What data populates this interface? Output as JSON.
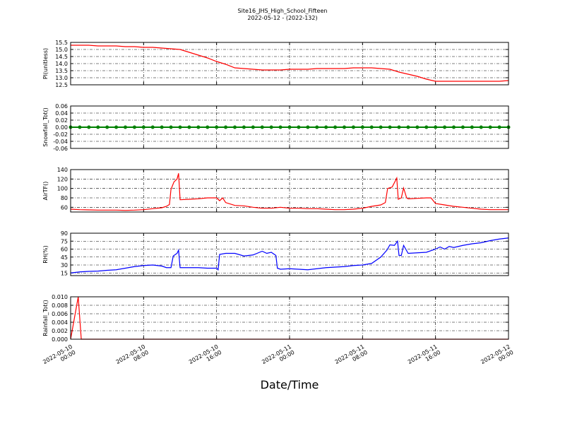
{
  "title": "Site16_JHS_High_School_Fifteen",
  "subtitle": "2022-05-12 - (2022-132)",
  "xlabel": "Date/Time",
  "chart_data": [
    {
      "type": "line",
      "ylabel": "Pl(unitless)",
      "xlim": [
        "2022-05-10 00:00",
        "2022-05-12 00:00"
      ],
      "xticks": [
        "2022-05-10 00:00",
        "2022-05-10 08:00",
        "2022-05-10 16:00",
        "2022-05-11 00:00",
        "2022-05-11 08:00",
        "2022-05-11 16:00",
        "2022-05-12 00:00"
      ],
      "ylim": [
        12.5,
        15.5
      ],
      "yticks": [
        12.5,
        {
          "value": 13,
          "label": "13.0"
        },
        13.5,
        {
          "value": 14,
          "label": "14.0"
        },
        14.5,
        {
          "value": 15,
          "label": "15.0"
        },
        15.5
      ],
      "grid": true,
      "x": [
        "2022-05-10 00:00",
        "2022-05-10 01:00",
        "2022-05-10 02:00",
        "2022-05-10 03:00",
        "2022-05-10 04:00",
        "2022-05-10 05:00",
        "2022-05-10 06:00",
        "2022-05-10 07:00",
        "2022-05-10 08:00",
        "2022-05-10 09:00",
        "2022-05-10 10:00",
        "2022-05-10 11:00",
        "2022-05-10 12:00",
        "2022-05-10 13:00",
        "2022-05-10 14:00",
        "2022-05-10 15:00",
        "2022-05-10 16:00",
        "2022-05-10 17:00",
        "2022-05-10 18:00",
        "2022-05-10 19:00",
        "2022-05-10 20:00",
        "2022-05-10 21:00",
        "2022-05-10 22:00",
        "2022-05-10 23:00",
        "2022-05-11 00:00",
        "2022-05-11 01:00",
        "2022-05-11 02:00",
        "2022-05-11 03:00",
        "2022-05-11 04:00",
        "2022-05-11 05:00",
        "2022-05-11 06:00",
        "2022-05-11 07:00",
        "2022-05-11 08:00",
        "2022-05-11 09:00",
        "2022-05-11 10:00",
        "2022-05-11 11:00",
        "2022-05-11 12:00",
        "2022-05-11 13:00",
        "2022-05-11 14:00",
        "2022-05-11 15:00",
        "2022-05-11 16:00",
        "2022-05-11 17:00",
        "2022-05-11 18:00",
        "2022-05-11 19:00",
        "2022-05-11 20:00",
        "2022-05-11 21:00",
        "2022-05-11 22:00",
        "2022-05-11 23:00",
        "2022-05-12 00:00"
      ],
      "series": [
        {
          "color": "#ff0000",
          "values": [
            15.3,
            15.3,
            15.3,
            15.25,
            15.25,
            15.25,
            15.2,
            15.2,
            15.15,
            15.15,
            15.1,
            15.05,
            15.0,
            14.8,
            14.6,
            14.4,
            14.15,
            13.95,
            13.7,
            13.65,
            13.6,
            13.55,
            13.55,
            13.55,
            13.6,
            13.6,
            13.6,
            13.65,
            13.65,
            13.65,
            13.65,
            13.7,
            13.7,
            13.7,
            13.65,
            13.6,
            13.4,
            13.25,
            13.1,
            12.9,
            12.75,
            12.75,
            12.75,
            12.75,
            12.75,
            12.75,
            12.75,
            12.75,
            12.8
          ]
        }
      ]
    },
    {
      "type": "line",
      "ylabel": "Snowfall_Tot()",
      "xlim": [
        "2022-05-10 00:00",
        "2022-05-12 00:00"
      ],
      "xticks": [
        "2022-05-10 00:00",
        "2022-05-10 08:00",
        "2022-05-10 16:00",
        "2022-05-11 00:00",
        "2022-05-11 08:00",
        "2022-05-11 16:00",
        "2022-05-12 00:00"
      ],
      "ylim": [
        -0.06,
        0.06
      ],
      "yticks": [
        {
          "value": -0.06,
          "label": "-0.06"
        },
        {
          "value": -0.04,
          "label": "-0.04"
        },
        {
          "value": -0.02,
          "label": "-0.02"
        },
        {
          "value": 0,
          "label": "0.00"
        },
        {
          "value": 0.02,
          "label": "0.02"
        },
        {
          "value": 0.04,
          "label": "0.04"
        },
        {
          "value": 0.06,
          "label": "0.06"
        }
      ],
      "grid": true,
      "x": [
        "2022-05-10 00:00",
        "2022-05-10 01:00",
        "2022-05-10 02:00",
        "2022-05-10 03:00",
        "2022-05-10 04:00",
        "2022-05-10 05:00",
        "2022-05-10 06:00",
        "2022-05-10 07:00",
        "2022-05-10 08:00",
        "2022-05-10 09:00",
        "2022-05-10 10:00",
        "2022-05-10 11:00",
        "2022-05-10 12:00",
        "2022-05-10 13:00",
        "2022-05-10 14:00",
        "2022-05-10 15:00",
        "2022-05-10 16:00",
        "2022-05-10 17:00",
        "2022-05-10 18:00",
        "2022-05-10 19:00",
        "2022-05-10 20:00",
        "2022-05-10 21:00",
        "2022-05-10 22:00",
        "2022-05-10 23:00",
        "2022-05-11 00:00",
        "2022-05-11 01:00",
        "2022-05-11 02:00",
        "2022-05-11 03:00",
        "2022-05-11 04:00",
        "2022-05-11 05:00",
        "2022-05-11 06:00",
        "2022-05-11 07:00",
        "2022-05-11 08:00",
        "2022-05-11 09:00",
        "2022-05-11 10:00",
        "2022-05-11 11:00",
        "2022-05-11 12:00",
        "2022-05-11 13:00",
        "2022-05-11 14:00",
        "2022-05-11 15:00",
        "2022-05-11 16:00",
        "2022-05-11 17:00",
        "2022-05-11 18:00",
        "2022-05-11 19:00",
        "2022-05-11 20:00",
        "2022-05-11 21:00",
        "2022-05-11 22:00",
        "2022-05-11 23:00",
        "2022-05-12 00:00"
      ],
      "series": [
        {
          "color": "#008000",
          "marker": true,
          "values": [
            0,
            0,
            0,
            0,
            0,
            0,
            0,
            0,
            0,
            0,
            0,
            0,
            0,
            0,
            0,
            0,
            0,
            0,
            0,
            0,
            0,
            0,
            0,
            0,
            0,
            0,
            0,
            0,
            0,
            0,
            0,
            0,
            0,
            0,
            0,
            0,
            0,
            0,
            0,
            0,
            0,
            0,
            0,
            0,
            0,
            0,
            0,
            0,
            0
          ]
        }
      ]
    },
    {
      "type": "line",
      "ylabel": "AirTF()",
      "xlim": [
        "2022-05-10 00:00",
        "2022-05-12 00:00"
      ],
      "xticks": [
        "2022-05-10 00:00",
        "2022-05-10 08:00",
        "2022-05-10 16:00",
        "2022-05-11 00:00",
        "2022-05-11 08:00",
        "2022-05-11 16:00",
        "2022-05-12 00:00"
      ],
      "ylim": [
        50,
        140
      ],
      "yticks": [
        60,
        80,
        100,
        120,
        140
      ],
      "grid": true,
      "x": [
        "2022-05-10 00:00",
        "2022-05-10 01:00",
        "2022-05-10 02:00",
        "2022-05-10 03:00",
        "2022-05-10 04:00",
        "2022-05-10 05:00",
        "2022-05-10 06:00",
        "2022-05-10 07:00",
        "2022-05-10 08:00",
        "2022-05-10 09:00",
        "2022-05-10 10:00",
        "2022-05-10 10:30",
        "2022-05-10 10:50",
        "2022-05-10 11:00",
        "2022-05-10 11:20",
        "2022-05-10 11:40",
        "2022-05-10 11:50",
        "2022-05-10 12:00",
        "2022-05-10 13:00",
        "2022-05-10 14:00",
        "2022-05-10 15:00",
        "2022-05-10 16:00",
        "2022-05-10 16:20",
        "2022-05-10 16:40",
        "2022-05-10 17:00",
        "2022-05-10 18:00",
        "2022-05-10 19:00",
        "2022-05-10 20:00",
        "2022-05-10 21:00",
        "2022-05-10 22:00",
        "2022-05-10 23:00",
        "2022-05-11 00:00",
        "2022-05-11 01:00",
        "2022-05-11 02:00",
        "2022-05-11 03:00",
        "2022-05-11 04:00",
        "2022-05-11 05:00",
        "2022-05-11 06:00",
        "2022-05-11 07:00",
        "2022-05-11 08:00",
        "2022-05-11 09:00",
        "2022-05-11 10:00",
        "2022-05-11 10:30",
        "2022-05-11 10:45",
        "2022-05-11 11:15",
        "2022-05-11 11:45",
        "2022-05-11 11:55",
        "2022-05-11 12:15",
        "2022-05-11 12:30",
        "2022-05-11 12:50",
        "2022-05-11 13:00",
        "2022-05-11 14:00",
        "2022-05-11 15:00",
        "2022-05-11 15:30",
        "2022-05-11 16:00",
        "2022-05-11 17:00",
        "2022-05-11 18:00",
        "2022-05-11 19:00",
        "2022-05-11 20:00",
        "2022-05-11 21:00",
        "2022-05-11 22:00",
        "2022-05-11 23:00",
        "2022-05-12 00:00"
      ],
      "series": [
        {
          "color": "#ff0000",
          "values": [
            56,
            55,
            54.5,
            54,
            54,
            54,
            53.5,
            54,
            55,
            57,
            59,
            62,
            66,
            98,
            114,
            120,
            132,
            76,
            77,
            78,
            80,
            80,
            74,
            80,
            70,
            64,
            63,
            60,
            58,
            58,
            60,
            58,
            58,
            57,
            57,
            56,
            55,
            55,
            56,
            58,
            62,
            65,
            70,
            100,
            103,
            122,
            77,
            80,
            101,
            80,
            78,
            79,
            80,
            80,
            68,
            65,
            62,
            60,
            58,
            56,
            55,
            55,
            55
          ]
        }
      ]
    },
    {
      "type": "line",
      "ylabel": "RH(%)",
      "xlim": [
        "2022-05-10 00:00",
        "2022-05-12 00:00"
      ],
      "xticks": [
        "2022-05-10 00:00",
        "2022-05-10 08:00",
        "2022-05-10 16:00",
        "2022-05-11 00:00",
        "2022-05-11 08:00",
        "2022-05-11 16:00",
        "2022-05-12 00:00"
      ],
      "ylim": [
        10,
        90
      ],
      "yticks": [
        15,
        30,
        45,
        60,
        75,
        90
      ],
      "grid": true,
      "x": [
        "2022-05-10 00:00",
        "2022-05-10 01:00",
        "2022-05-10 02:00",
        "2022-05-10 03:00",
        "2022-05-10 04:00",
        "2022-05-10 05:00",
        "2022-05-10 06:00",
        "2022-05-10 07:00",
        "2022-05-10 08:00",
        "2022-05-10 09:00",
        "2022-05-10 10:00",
        "2022-05-10 10:30",
        "2022-05-10 11:00",
        "2022-05-10 11:15",
        "2022-05-10 11:40",
        "2022-05-10 11:50",
        "2022-05-10 12:00",
        "2022-05-10 13:00",
        "2022-05-10 14:00",
        "2022-05-10 15:00",
        "2022-05-10 16:00",
        "2022-05-10 16:10",
        "2022-05-10 16:20",
        "2022-05-10 17:00",
        "2022-05-10 18:00",
        "2022-05-10 19:00",
        "2022-05-10 20:00",
        "2022-05-10 21:00",
        "2022-05-10 21:30",
        "2022-05-10 22:00",
        "2022-05-10 22:30",
        "2022-05-10 22:40",
        "2022-05-10 23:00",
        "2022-05-11 00:00",
        "2022-05-11 01:00",
        "2022-05-11 02:00",
        "2022-05-11 03:00",
        "2022-05-11 04:00",
        "2022-05-11 05:00",
        "2022-05-11 06:00",
        "2022-05-11 07:00",
        "2022-05-11 08:00",
        "2022-05-11 09:00",
        "2022-05-11 10:00",
        "2022-05-11 10:40",
        "2022-05-11 11:00",
        "2022-05-11 11:30",
        "2022-05-11 11:50",
        "2022-05-11 12:00",
        "2022-05-11 12:15",
        "2022-05-11 12:30",
        "2022-05-11 13:00",
        "2022-05-11 14:00",
        "2022-05-11 15:00",
        "2022-05-11 16:00",
        "2022-05-11 16:30",
        "2022-05-11 17:00",
        "2022-05-11 17:30",
        "2022-05-11 18:00",
        "2022-05-11 19:00",
        "2022-05-11 20:00",
        "2022-05-11 21:00",
        "2022-05-11 22:00",
        "2022-05-11 23:00",
        "2022-05-12 00:00"
      ],
      "series": [
        {
          "color": "#0000ff",
          "values": [
            15,
            17,
            18,
            18.5,
            20,
            21,
            24,
            27,
            29,
            30,
            28,
            25,
            25,
            47,
            52,
            58,
            25,
            25,
            25,
            24,
            24,
            21,
            50,
            52,
            52,
            47,
            49,
            56,
            52,
            54,
            48,
            24,
            22,
            23,
            22,
            21,
            23,
            25,
            26,
            27,
            29,
            30,
            33,
            45,
            58,
            68,
            67,
            75,
            48,
            48,
            67,
            52,
            53,
            54,
            60,
            64,
            60,
            65,
            63,
            67,
            70,
            72,
            76,
            79,
            81
          ]
        }
      ]
    },
    {
      "type": "line",
      "ylabel": "Rainfall_Tot()",
      "xlim": [
        "2022-05-10 00:00",
        "2022-05-12 00:00"
      ],
      "xticks": [
        "2022-05-10 00:00",
        "2022-05-10 08:00",
        "2022-05-10 16:00",
        "2022-05-11 00:00",
        "2022-05-11 08:00",
        "2022-05-11 16:00",
        "2022-05-12 00:00"
      ],
      "ylim": [
        0,
        0.01
      ],
      "yticks": [
        {
          "value": 0,
          "label": "0.000"
        },
        {
          "value": 0.002,
          "label": "0.002"
        },
        {
          "value": 0.004,
          "label": "0.004"
        },
        {
          "value": 0.006,
          "label": "0.006"
        },
        {
          "value": 0.008,
          "label": "0.008"
        },
        {
          "value": 0.01,
          "label": "0.010"
        }
      ],
      "grid": true,
      "x": [
        "2022-05-10 00:00",
        "2022-05-10 00:50",
        "2022-05-10 01:10",
        "2022-05-12 00:00"
      ],
      "series": [
        {
          "color": "#ff0000",
          "values": [
            0,
            0.01,
            0,
            0
          ]
        }
      ]
    }
  ]
}
